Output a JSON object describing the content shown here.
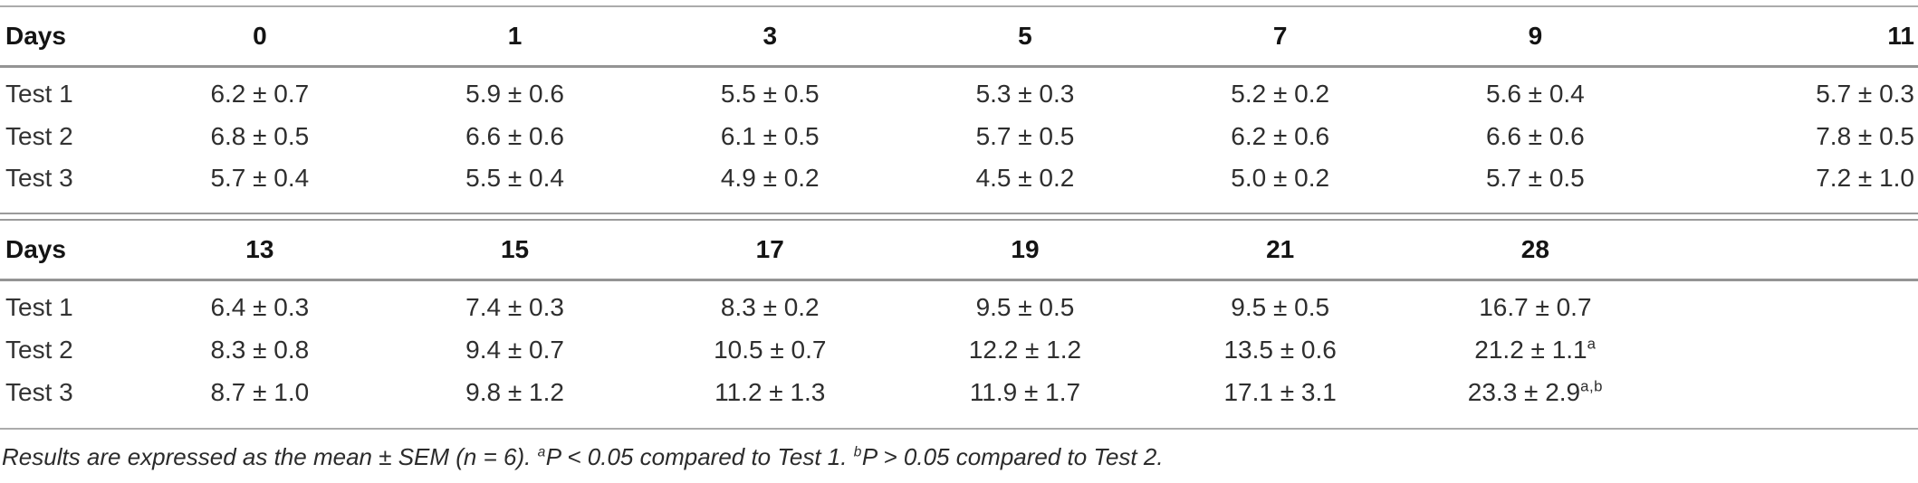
{
  "figure": {
    "blocks": [
      {
        "header_label": "Days",
        "columns": [
          "0",
          "1",
          "3",
          "5",
          "7",
          "9",
          "11"
        ],
        "rows": [
          {
            "label": "Test 1",
            "values": [
              "6.2 ± 0.7",
              "5.9 ± 0.6",
              "5.5 ± 0.5",
              "5.3 ± 0.3",
              "5.2 ± 0.2",
              "5.6 ± 0.4",
              "5.7 ± 0.3"
            ]
          },
          {
            "label": "Test 2",
            "values": [
              "6.8 ± 0.5",
              "6.6 ± 0.6",
              "6.1 ± 0.5",
              "5.7 ± 0.5",
              "6.2 ± 0.6",
              "6.6 ± 0.6",
              "7.8 ± 0.5"
            ]
          },
          {
            "label": "Test 3",
            "values": [
              "5.7 ± 0.4",
              "5.5 ± 0.4",
              "4.9 ± 0.2",
              "4.5 ± 0.2",
              "5.0 ± 0.2",
              "5.7 ± 0.5",
              "7.2 ± 1.0"
            ]
          }
        ]
      },
      {
        "header_label": "Days",
        "columns": [
          "13",
          "15",
          "17",
          "19",
          "21",
          "28",
          ""
        ],
        "rows": [
          {
            "label": "Test 1",
            "values": [
              "6.4 ± 0.3",
              "7.4 ± 0.3",
              "8.3 ± 0.2",
              "9.5 ± 0.5",
              "9.5 ± 0.5",
              "16.7 ± 0.7",
              ""
            ]
          },
          {
            "label": "Test 2",
            "values": [
              "8.3 ± 0.8",
              "9.4 ± 0.7",
              "10.5 ± 0.7",
              "12.2 ± 1.2",
              "13.5 ± 0.6",
              {
                "text": "21.2 ± 1.1",
                "sup": "a"
              },
              ""
            ]
          },
          {
            "label": "Test 3",
            "values": [
              "8.7 ± 1.0",
              "9.8 ± 1.2",
              "11.2 ± 1.3",
              "11.9 ± 1.7",
              "17.1 ± 3.1",
              {
                "text": "23.3 ± 2.9",
                "sup": "a,b"
              },
              ""
            ]
          }
        ]
      }
    ],
    "footnote": {
      "segments": [
        {
          "text": "Results are expressed as the mean ± SEM (n = 6). "
        },
        {
          "sup": "a"
        },
        {
          "text": "P < 0.05 compared to Test 1. "
        },
        {
          "sup": "b"
        },
        {
          "text": "P > 0.05 compared to Test 2."
        }
      ]
    },
    "colors": {
      "background": "#ffffff",
      "text": "#2e2e2e",
      "header_text": "#141414",
      "rule": "#9a9a9a"
    }
  }
}
